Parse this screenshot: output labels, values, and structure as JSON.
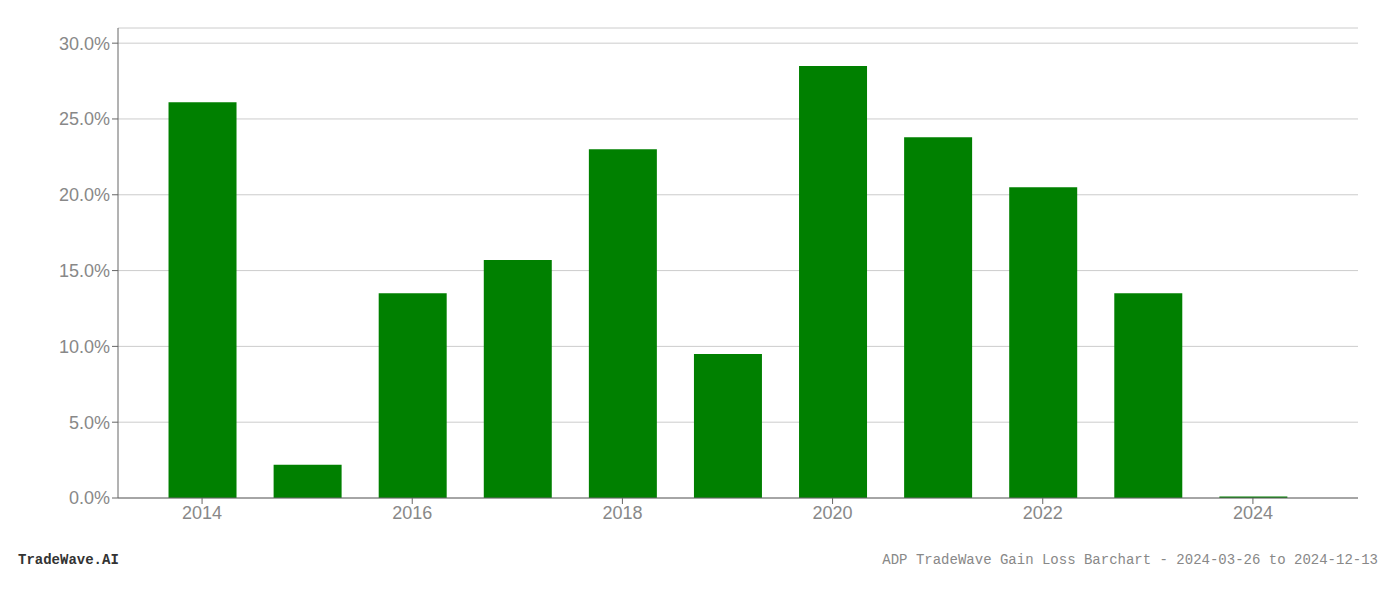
{
  "chart_data": {
    "type": "bar",
    "x": [
      2014,
      2015,
      2016,
      2017,
      2018,
      2019,
      2020,
      2021,
      2022,
      2023,
      2024
    ],
    "values": [
      0.261,
      0.022,
      0.135,
      0.157,
      0.23,
      0.095,
      0.285,
      0.238,
      0.205,
      0.135,
      0.001
    ],
    "color": "#008000",
    "xlim": [
      2013.2,
      2025.0
    ],
    "xticks": [
      2014,
      2016,
      2018,
      2020,
      2022,
      2024
    ],
    "ylim": [
      0,
      0.31
    ],
    "yticks": [
      {
        "value": 0.0,
        "label": "0.0%"
      },
      {
        "value": 0.05,
        "label": "5.0%"
      },
      {
        "value": 0.1,
        "label": "10.0%"
      },
      {
        "value": 0.15,
        "label": "15.0%"
      },
      {
        "value": 0.2,
        "label": "20.0%"
      },
      {
        "value": 0.25,
        "label": "25.0%"
      },
      {
        "value": 0.3,
        "label": "30.0%"
      }
    ],
    "grid": true,
    "annotations": [
      "TradeWave.AI",
      "ADP TradeWave Gain Loss Barchart - 2024-03-26 to 2024-12-13"
    ]
  }
}
